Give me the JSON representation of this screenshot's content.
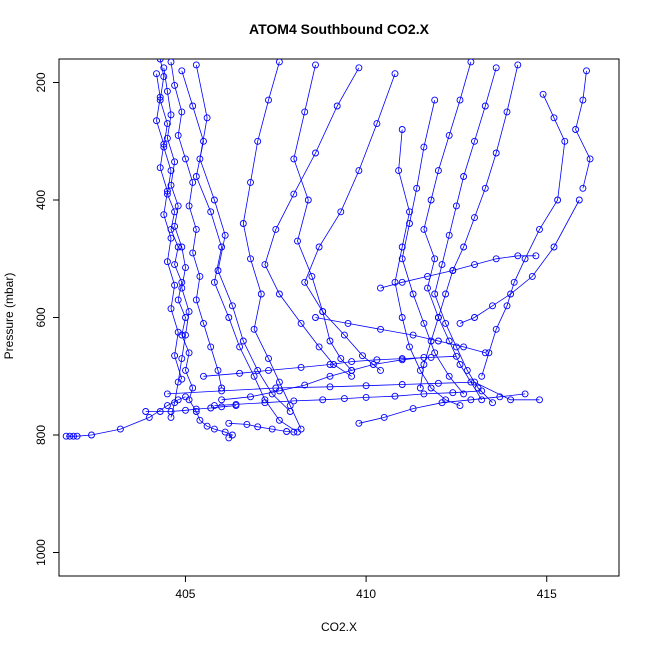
{
  "chart_data": {
    "type": "scatter",
    "title": "ATOM4 Southbound CO2.X",
    "xlabel": "CO2.X",
    "ylabel": "Pressure (mbar)",
    "xlim": [
      401.5,
      417.0
    ],
    "ylim": [
      1040,
      160
    ],
    "y_inverted": true,
    "xticks": [
      405,
      410,
      415
    ],
    "yticks": [
      200,
      400,
      600,
      800,
      1000
    ],
    "grid": false,
    "legend": "none",
    "marker": "open-circle",
    "color": "#0000ff",
    "series": [
      {
        "x": [
          404.3,
          404.4,
          404.3,
          404.5,
          404.4,
          404.6,
          404.5,
          404.7,
          404.6,
          404.8,
          404.7,
          404.9,
          404.8,
          405.0,
          404.9,
          405.1,
          405.0,
          405.2,
          405.1,
          405.3,
          405.4,
          405.6,
          405.8,
          406.1,
          406.3,
          406.2
        ],
        "y": [
          160,
          190,
          230,
          270,
          310,
          350,
          390,
          420,
          450,
          480,
          510,
          540,
          570,
          600,
          630,
          660,
          690,
          720,
          740,
          760,
          775,
          785,
          790,
          795,
          800,
          805
        ]
      },
      {
        "x": [
          404.4,
          404.5,
          404.6,
          404.5,
          404.7,
          404.6,
          404.8,
          404.7,
          404.9,
          405.0,
          404.9,
          405.1,
          405.0,
          404.9,
          404.8,
          404.7,
          404.6
        ],
        "y": [
          175,
          215,
          255,
          295,
          335,
          375,
          410,
          445,
          480,
          515,
          550,
          590,
          630,
          670,
          710,
          745,
          770
        ]
      },
      {
        "x": [
          404.6,
          404.7,
          404.9,
          404.8,
          405.0,
          405.2,
          405.1,
          405.3,
          405.2,
          405.4,
          405.3,
          405.5,
          405.7,
          405.9,
          406.0
        ],
        "y": [
          165,
          205,
          250,
          290,
          330,
          370,
          410,
          450,
          490,
          530,
          570,
          610,
          650,
          690,
          720
        ]
      },
      {
        "x": [
          404.2,
          404.3,
          404.2,
          404.4,
          404.3,
          404.5,
          404.4,
          404.6,
          404.5,
          404.7,
          404.6,
          404.8,
          404.7,
          404.9
        ],
        "y": [
          185,
          225,
          265,
          305,
          345,
          385,
          425,
          465,
          505,
          545,
          585,
          625,
          665,
          705
        ]
      },
      {
        "x": [
          405.3,
          405.6,
          405.4,
          405.8,
          406.1,
          405.9,
          406.3,
          406.6,
          407.0,
          407.4,
          407.9
        ],
        "y": [
          170,
          260,
          330,
          400,
          460,
          520,
          580,
          640,
          690,
          730,
          760
        ]
      },
      {
        "x": [
          404.9,
          405.2,
          405.5,
          405.3,
          405.7,
          406.0,
          405.8,
          406.2,
          406.5,
          406.9,
          407.2,
          407.6,
          408.1
        ],
        "y": [
          180,
          240,
          300,
          360,
          420,
          480,
          540,
          600,
          650,
          700,
          740,
          775,
          795
        ]
      },
      {
        "x": [
          407.6,
          407.3,
          407.0,
          406.8,
          406.6,
          406.8,
          407.1,
          406.9,
          407.3,
          407.6,
          407.9,
          408.2
        ],
        "y": [
          165,
          230,
          300,
          370,
          440,
          500,
          560,
          620,
          670,
          710,
          750,
          790
        ]
      },
      {
        "x": [
          408.6,
          408.3,
          408.0,
          408.4,
          408.1,
          408.5,
          408.8,
          409.0,
          409.3,
          409.6
        ],
        "y": [
          170,
          250,
          330,
          400,
          470,
          530,
          590,
          640,
          670,
          690
        ]
      },
      {
        "x": [
          409.8,
          409.2,
          408.6,
          408.0,
          407.5,
          407.2,
          407.6,
          408.2,
          408.7,
          409.1,
          409.6
        ],
        "y": [
          175,
          240,
          320,
          390,
          450,
          510,
          560,
          610,
          650,
          680,
          700
        ]
      },
      {
        "x": [
          410.8,
          410.3,
          409.8,
          409.3,
          408.7,
          408.3,
          408.8,
          409.4,
          409.9,
          410.4
        ],
        "y": [
          185,
          270,
          350,
          420,
          480,
          540,
          590,
          630,
          665,
          690
        ]
      },
      {
        "x": [
          412.9,
          412.6,
          412.3,
          412.0,
          411.8,
          411.6,
          411.9,
          411.7,
          412.0,
          412.3,
          412.6,
          412.9,
          413.2
        ],
        "y": [
          165,
          230,
          290,
          350,
          400,
          450,
          500,
          550,
          600,
          640,
          680,
          710,
          740
        ]
      },
      {
        "x": [
          413.6,
          413.3,
          413.0,
          412.7,
          412.5,
          412.3,
          412.1,
          411.9,
          412.2,
          412.5,
          412.8,
          413.1,
          413.5
        ],
        "y": [
          175,
          240,
          300,
          360,
          410,
          460,
          510,
          560,
          610,
          650,
          690,
          720,
          745
        ]
      },
      {
        "x": [
          414.2,
          413.9,
          413.6,
          413.3,
          413.0,
          412.7,
          412.4,
          412.2,
          412.0,
          411.8,
          411.6,
          411.5
        ],
        "y": [
          170,
          250,
          320,
          380,
          430,
          480,
          520,
          560,
          600,
          640,
          680,
          720
        ]
      },
      {
        "x": [
          411.0,
          410.9,
          411.2,
          411.0,
          410.8,
          411.0,
          411.2,
          411.5,
          411.8,
          412.2,
          412.6
        ],
        "y": [
          280,
          350,
          420,
          480,
          540,
          600,
          650,
          690,
          720,
          740,
          750
        ]
      },
      {
        "x": [
          411.9,
          411.6,
          411.4,
          411.2,
          411.0,
          411.3,
          411.6,
          411.9,
          412.3,
          412.7
        ],
        "y": [
          230,
          310,
          380,
          440,
          500,
          560,
          610,
          660,
          700,
          730
        ]
      },
      {
        "x": [
          414.9,
          415.2,
          415.5,
          415.3,
          414.8,
          414.4,
          414.1,
          413.9,
          413.6,
          413.4,
          413.2
        ],
        "y": [
          220,
          260,
          300,
          400,
          450,
          500,
          540,
          580,
          620,
          660,
          700
        ]
      },
      {
        "x": [
          416.1,
          416.0,
          415.8,
          416.2,
          416.0
        ],
        "y": [
          180,
          230,
          280,
          330,
          380
        ]
      },
      {
        "x": [
          401.7,
          401.8,
          401.9,
          402.0,
          402.4,
          403.2,
          404.0,
          404.5,
          404.8,
          405.0
        ],
        "y": [
          802,
          802,
          802,
          802,
          800,
          790,
          770,
          750,
          740,
          735
        ]
      },
      {
        "x": [
          403.9,
          404.3,
          404.6,
          405.0,
          405.3,
          405.7,
          406.0,
          406.4
        ],
        "y": [
          760,
          760,
          760,
          758,
          756,
          754,
          752,
          750
        ]
      },
      {
        "x": [
          404.5,
          406.0,
          407.5,
          409.0,
          410.0,
          411.0,
          412.0,
          413.0,
          414.0,
          414.8
        ],
        "y": [
          730,
          725,
          720,
          718,
          716,
          714,
          712,
          710,
          740,
          740
        ]
      },
      {
        "x": [
          409.8,
          410.5,
          411.3,
          412.1,
          412.9,
          413.7,
          414.4
        ],
        "y": [
          780,
          770,
          755,
          745,
          740,
          735,
          730
        ]
      },
      {
        "x": [
          405.5,
          406.5,
          407.3,
          408.2,
          409.0,
          409.6,
          410.3,
          411.0,
          411.8,
          412.5
        ],
        "y": [
          700,
          695,
          690,
          685,
          680,
          675,
          672,
          670,
          668,
          666
        ]
      },
      {
        "x": [
          406.0,
          406.8,
          407.6,
          408.3,
          409.0,
          409.6,
          410.2,
          411.0,
          411.6
        ],
        "y": [
          740,
          735,
          725,
          715,
          700,
          690,
          680,
          672,
          668
        ]
      },
      {
        "x": [
          405.8,
          406.4,
          407.2,
          408.0,
          408.8,
          409.4,
          410.0,
          410.8,
          411.6,
          412.4,
          413.2
        ],
        "y": [
          750,
          748,
          745,
          742,
          740,
          738,
          736,
          734,
          730,
          728,
          725
        ]
      },
      {
        "x": [
          406.2,
          406.7,
          407.0,
          407.4,
          407.8,
          408.0
        ],
        "y": [
          780,
          782,
          786,
          790,
          794,
          795
        ]
      },
      {
        "x": [
          408.6,
          409.5,
          410.4,
          411.3,
          412.0,
          412.7,
          413.3
        ],
        "y": [
          600,
          610,
          620,
          630,
          640,
          650,
          660
        ]
      },
      {
        "x": [
          410.4,
          411.0,
          411.7,
          412.4,
          413.0,
          413.6,
          414.2,
          414.7
        ],
        "y": [
          550,
          540,
          530,
          520,
          510,
          500,
          495,
          495
        ]
      },
      {
        "x": [
          412.6,
          413.0,
          413.5,
          414.0,
          414.6,
          415.2,
          415.9
        ],
        "y": [
          610,
          600,
          580,
          560,
          530,
          480,
          400
        ]
      }
    ]
  }
}
